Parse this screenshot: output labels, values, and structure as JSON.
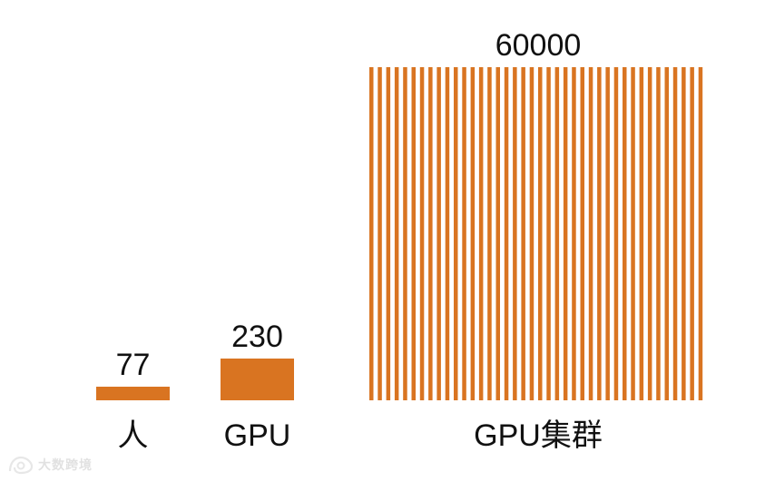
{
  "chart_data": {
    "type": "bar",
    "categories": [
      "人",
      "GPU",
      "GPU集群"
    ],
    "values": [
      77,
      230,
      60000
    ],
    "value_labels": [
      "77",
      "230",
      "60000"
    ],
    "title": "",
    "xlabel": "",
    "ylabel": "",
    "bar_color": "#D97421",
    "grid": false,
    "legend": "none",
    "note": "GPU集群 bar drawn as many thin vertical stripes"
  },
  "watermark": {
    "text": "大数跨境"
  }
}
